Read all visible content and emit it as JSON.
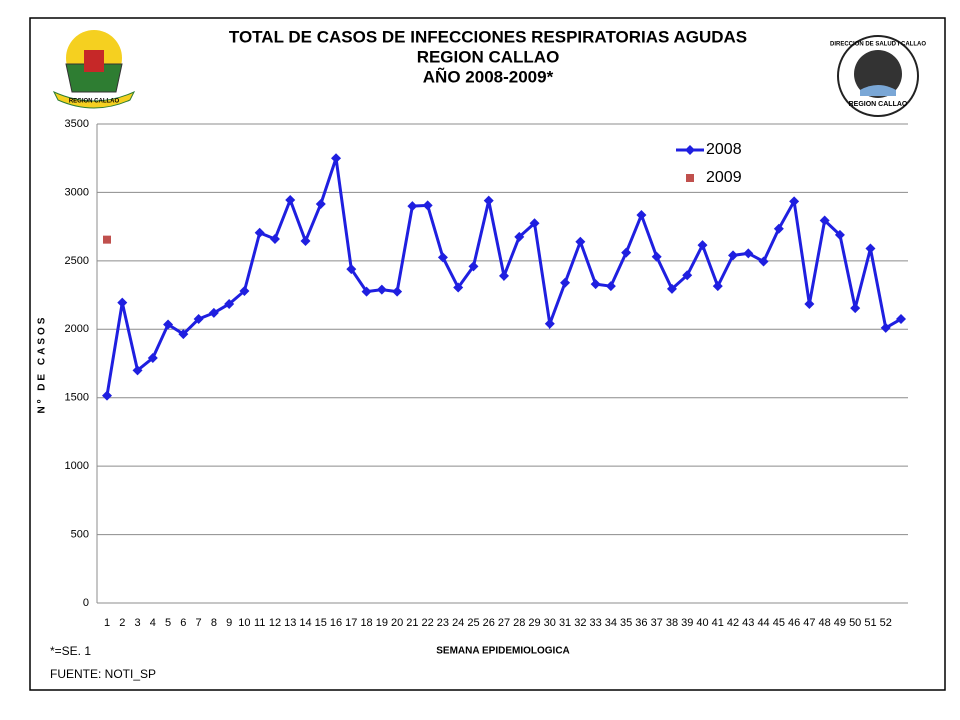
{
  "chart_data": {
    "type": "line",
    "title": [
      "TOTAL DE CASOS DE INFECCIONES RESPIRATORIAS AGUDAS",
      "REGION  CALLAO",
      "AÑO 2008-2009*"
    ],
    "logo_left_text": "REGION CALLAO",
    "logo_right_text": [
      "DIRECCION DE SALUD I CALLAO",
      "REGION CALLAO"
    ],
    "y_label": "Nº DE CASOS",
    "x_label": "SEMANA EPIDEMIOLOGICA",
    "notes": [
      "*=SE. 1",
      "FUENTE: NOTI_SP"
    ],
    "categories": [
      "1",
      "2",
      "3",
      "4",
      "5",
      "6",
      "7",
      "8",
      "9",
      "10",
      "11",
      "12",
      "13",
      "14",
      "15",
      "16",
      "17",
      "18",
      "19",
      "20",
      "21",
      "22",
      "23",
      "24",
      "25",
      "26",
      "27",
      "28",
      "29",
      "30",
      "31",
      "32",
      "33",
      "34",
      "35",
      "36",
      "37",
      "38",
      "39",
      "40",
      "41",
      "42",
      "43",
      "44",
      "45",
      "46",
      "47",
      "48",
      "49",
      "50",
      "51",
      "52",
      null
    ],
    "series": [
      {
        "name": "2008",
        "color": "#1f1fe0",
        "marker": "diamond",
        "line": true,
        "values": [
          1515,
          2195,
          1700,
          1790,
          2035,
          1965,
          2075,
          2120,
          2185,
          2280,
          2705,
          2660,
          2945,
          2645,
          2915,
          3250,
          2440,
          2275,
          2290,
          2275,
          2900,
          2905,
          2525,
          2305,
          2460,
          2940,
          2390,
          2675,
          2775,
          2040,
          2340,
          2640,
          2330,
          2315,
          2560,
          2835,
          2530,
          2295,
          2395,
          2615,
          2315,
          2540,
          2555,
          2495,
          2735,
          2935,
          2185,
          2795,
          2690,
          2155,
          2590,
          2010,
          2075
        ]
      },
      {
        "name": "2009",
        "color": "#c0504d",
        "marker": "square",
        "line": false,
        "values": [
          2655,
          null,
          null,
          null,
          null,
          null,
          null,
          null,
          null,
          null,
          null,
          null,
          null,
          null,
          null,
          null,
          null,
          null,
          null,
          null,
          null,
          null,
          null,
          null,
          null,
          null,
          null,
          null,
          null,
          null,
          null,
          null,
          null,
          null,
          null,
          null,
          null,
          null,
          null,
          null,
          null,
          null,
          null,
          null,
          null,
          null,
          null,
          null,
          null,
          null,
          null,
          null,
          null
        ]
      }
    ],
    "ylim": [
      0,
      3500
    ],
    "yticks": [
      0,
      500,
      1000,
      1500,
      2000,
      2500,
      3000,
      3500
    ],
    "grid": true,
    "legend": "top-right"
  }
}
